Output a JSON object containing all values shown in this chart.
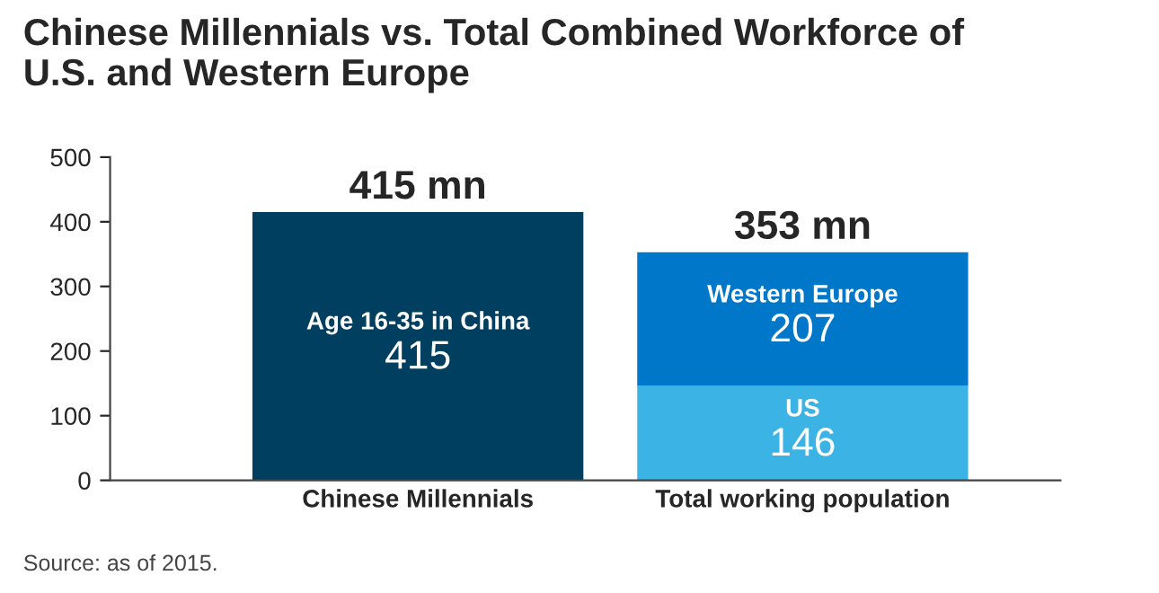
{
  "chart_data": {
    "type": "bar",
    "stacked": true,
    "title": "Chinese Millennials vs. Total Combined Workforce of\nU.S. and Western Europe",
    "categories": [
      "Chinese Millennials",
      "Total working population"
    ],
    "series": [
      {
        "name": "Age 16-35 in China",
        "color": "#003f5f",
        "values": [
          415,
          null
        ]
      },
      {
        "name": "US",
        "color": "#3bb3e4",
        "values": [
          null,
          146
        ]
      },
      {
        "name": "Western Europe",
        "color": "#0077c8",
        "values": [
          null,
          207
        ]
      }
    ],
    "totals": [
      "415 mn",
      "353 mn"
    ],
    "data_labels": true,
    "ylim": [
      0,
      500
    ],
    "yticks": [
      0,
      100,
      200,
      300,
      400,
      500
    ],
    "grid": false,
    "legend": false,
    "annotations": [
      "Source: as of 2015."
    ]
  }
}
